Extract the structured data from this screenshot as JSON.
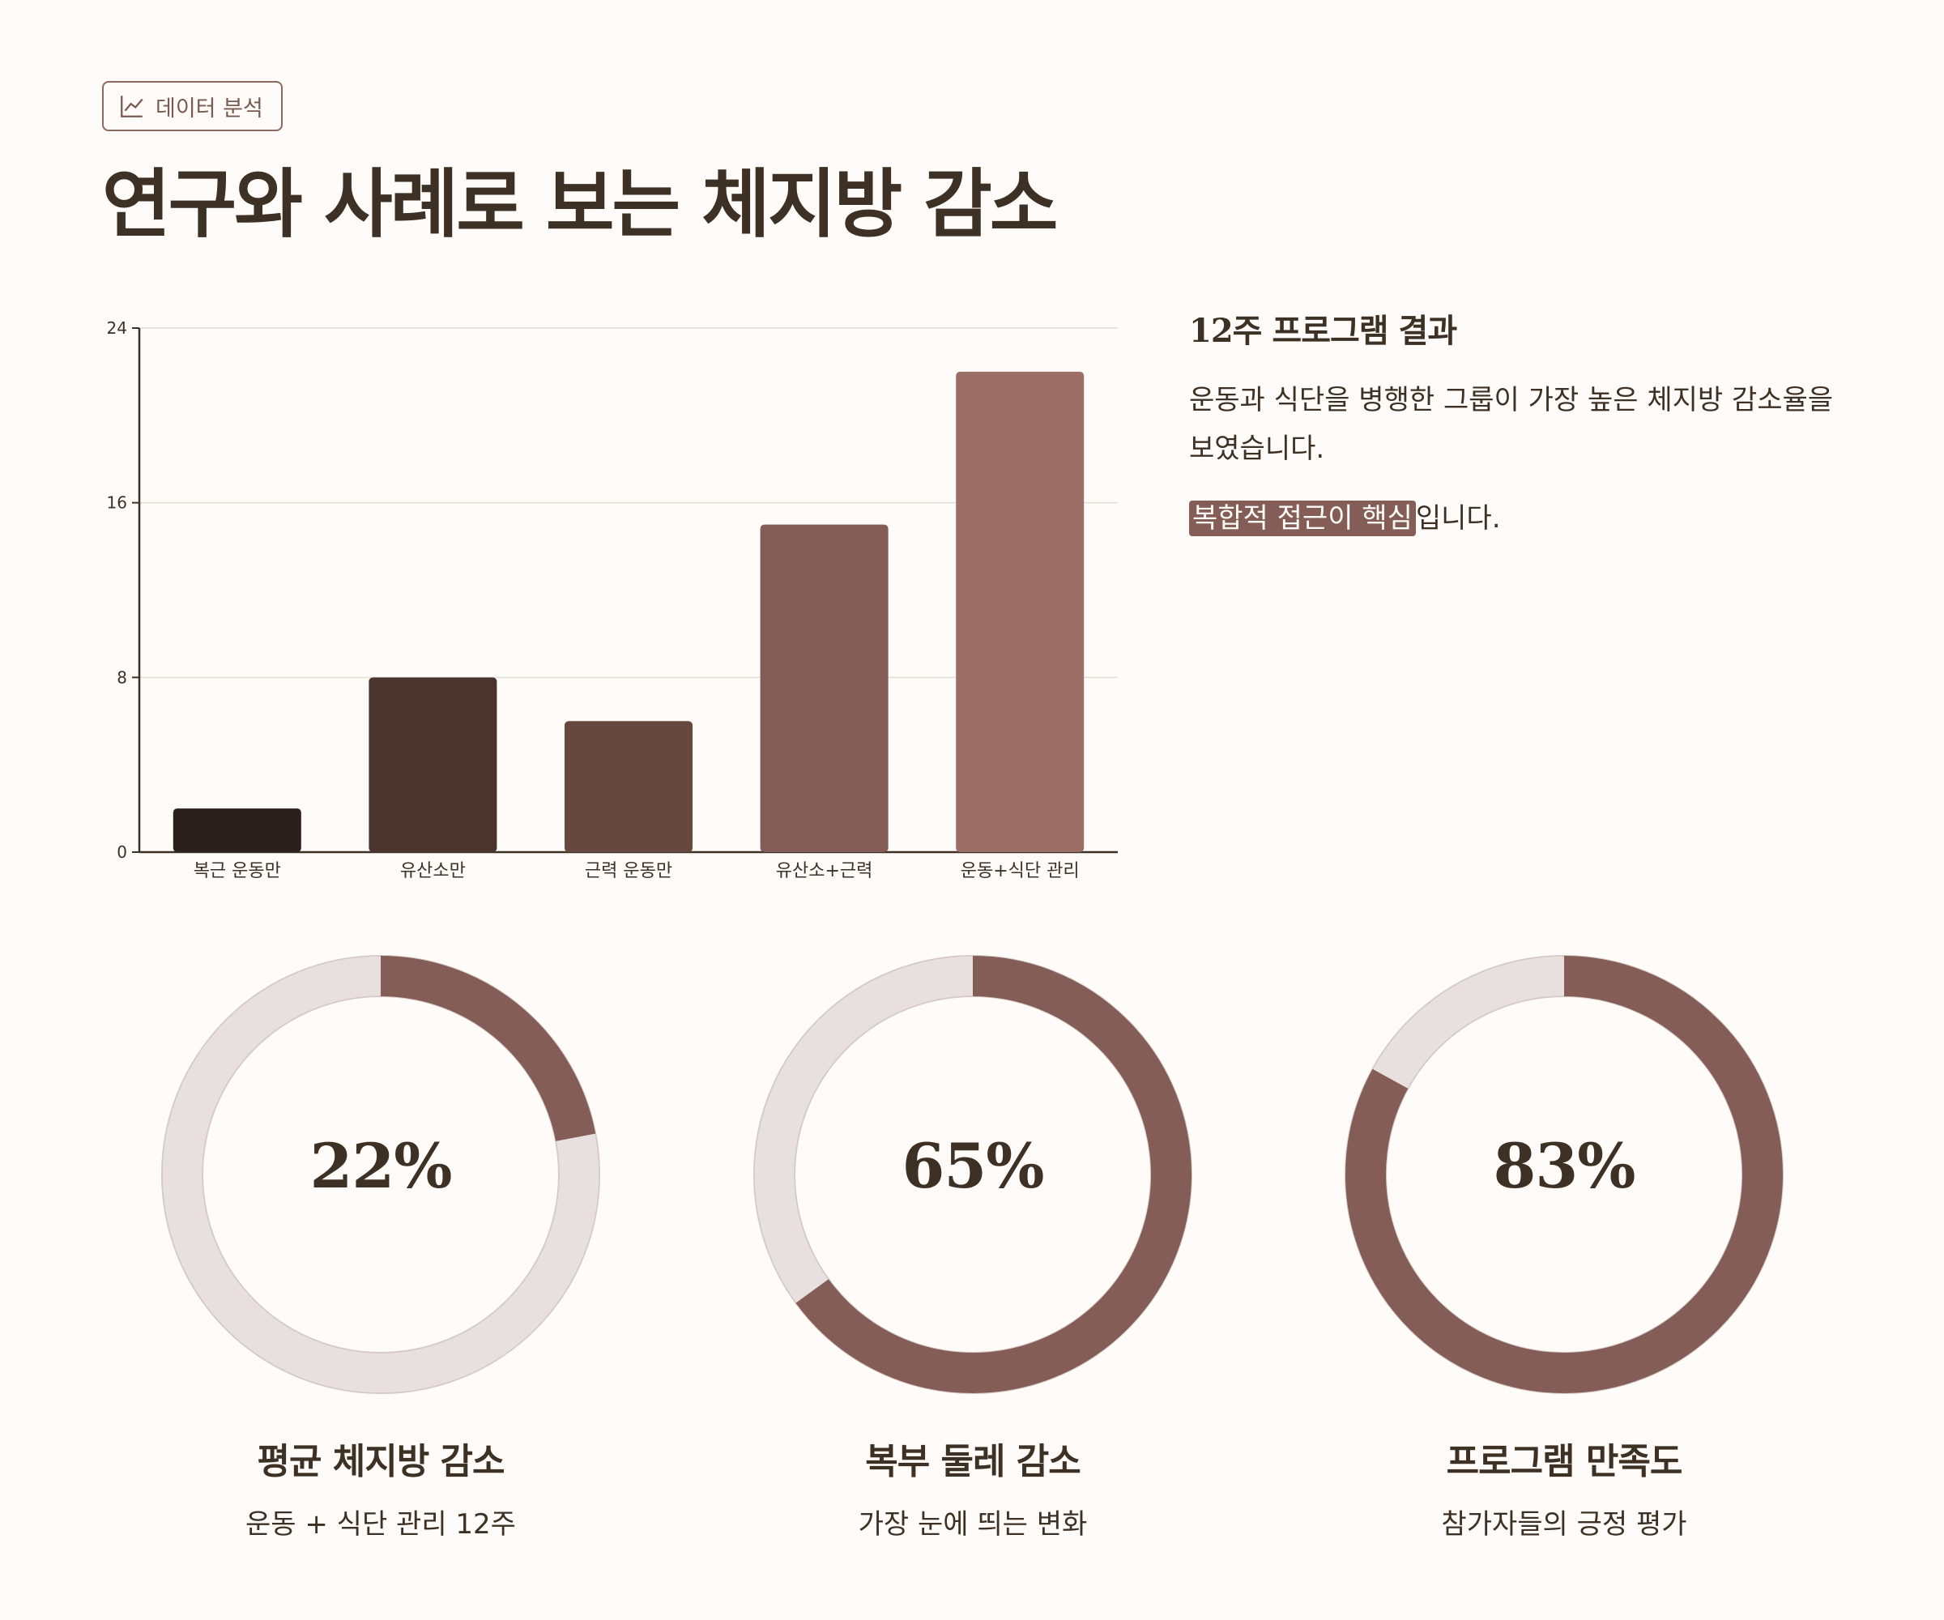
{
  "header": {
    "tag_icon": "trend-line-icon",
    "tag_label": "데이터 분석",
    "title": "연구와 사례로 보는 체지방 감소"
  },
  "colors": {
    "background": "#fffbf8",
    "text": "#3d3024",
    "accent": "#845e56",
    "track": "#e8e0df",
    "bars": [
      "#2c201d",
      "#4a352e",
      "#66483f",
      "#835d55",
      "#9b6f66"
    ]
  },
  "chart_data": {
    "type": "bar",
    "categories": [
      "복근 운동만",
      "유산소만",
      "근력 운동만",
      "유산소+근력",
      "운동+식단 관리"
    ],
    "values": [
      2,
      8,
      6,
      15,
      22
    ],
    "yticks": [
      0,
      8,
      16,
      24
    ],
    "ylim": [
      0,
      24
    ],
    "grid": true,
    "title": "",
    "xlabel": "",
    "ylabel": ""
  },
  "side": {
    "heading": "12주 프로그램 결과",
    "body": "운동과 식단을 병행한 그룹이 가장 높은 체지방 감소율을 보였습니다.",
    "highlight": "복합적 접근이 핵심",
    "tail": "입니다."
  },
  "donuts": [
    {
      "value": 22,
      "label_text": "22%",
      "title": "평균 체지방 감소",
      "subtitle": "운동 + 식단 관리 12주"
    },
    {
      "value": 65,
      "label_text": "65%",
      "title": "복부 둘레 감소",
      "subtitle": "가장 눈에 띄는 변화"
    },
    {
      "value": 83,
      "label_text": "83%",
      "title": "프로그램 만족도",
      "subtitle": "참가자들의 긍정 평가"
    }
  ]
}
